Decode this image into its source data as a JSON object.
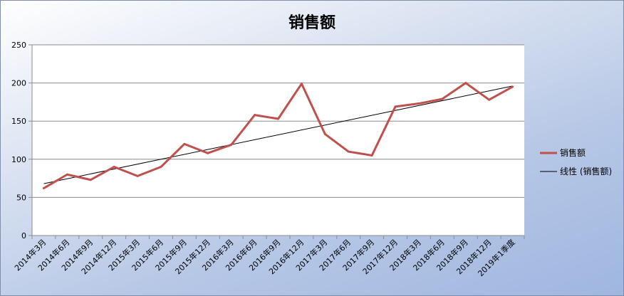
{
  "chart_data": {
    "type": "line",
    "title": "销售额",
    "categories": [
      "2014年3月",
      "2014年6月",
      "2014年9月",
      "2014年12月",
      "2015年3月",
      "2015年6月",
      "2015年9月",
      "2015年12月",
      "2016年3月",
      "2016年6月",
      "2016年9月",
      "2016年12月",
      "2017年3月",
      "2017年6月",
      "2017年9月",
      "2017年12月",
      "2018年3月",
      "2018年6月",
      "2018年9月",
      "2018年12月",
      "2019年1季度"
    ],
    "series": [
      {
        "name": "销售额",
        "values": [
          62,
          80,
          73,
          90,
          78,
          90,
          120,
          108,
          119,
          158,
          153,
          199,
          133,
          110,
          105,
          169,
          173,
          179,
          200,
          178,
          195
        ],
        "color": "#c0504d"
      },
      {
        "name": "线性 (销售额)",
        "trendline": "linear",
        "start": 68,
        "end": 196,
        "color": "#000000"
      }
    ],
    "ylim": [
      0,
      250
    ],
    "yticks": [
      0,
      50,
      100,
      150,
      200,
      250
    ],
    "grid": true,
    "legend_position": "right",
    "xlabel": "",
    "ylabel": ""
  }
}
